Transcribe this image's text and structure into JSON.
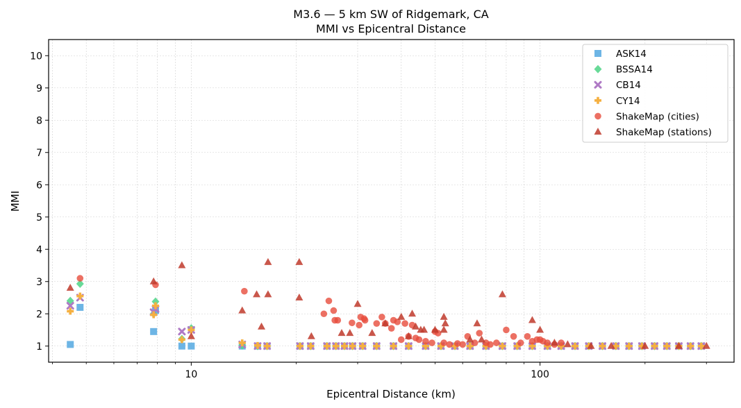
{
  "chart_data": {
    "type": "scatter",
    "title": "M3.6 — 5 km SW of Ridgemark, CA",
    "subtitle": "MMI vs Epicentral Distance",
    "xlabel": "Epicentral Distance (km)",
    "ylabel": "MMI",
    "xscale": "log",
    "xlim": [
      3.9,
      360
    ],
    "ylim": [
      0.5,
      10.5
    ],
    "xticks": [
      10,
      100
    ],
    "xtick_labels": [
      "10",
      "100"
    ],
    "yticks": [
      1,
      2,
      3,
      4,
      5,
      6,
      7,
      8,
      9,
      10
    ],
    "ytick_labels": [
      "1",
      "2",
      "3",
      "4",
      "5",
      "6",
      "7",
      "8",
      "9",
      "10"
    ],
    "grid": true,
    "legend_position": "top-right",
    "series": [
      {
        "name": "ASK14",
        "marker": "square",
        "color": "#5DADE2",
        "points": [
          [
            4.5,
            1.05
          ],
          [
            4.8,
            2.2
          ],
          [
            7.8,
            1.45
          ],
          [
            7.9,
            2.1
          ],
          [
            9.4,
            1.0
          ],
          [
            10.0,
            1.0
          ],
          [
            14.0,
            1.0
          ],
          [
            15.5,
            1.0
          ],
          [
            16.5,
            1.0
          ],
          [
            20.5,
            1.0
          ],
          [
            22.0,
            1.0
          ],
          [
            24.5,
            1.0
          ],
          [
            26.0,
            1.0
          ],
          [
            27.5,
            1.0
          ],
          [
            29.0,
            1.0
          ],
          [
            31.0,
            1.0
          ],
          [
            34.0,
            1.0
          ],
          [
            38.0,
            1.0
          ],
          [
            42.0,
            1.0
          ],
          [
            47.0,
            1.0
          ],
          [
            52.0,
            1.0
          ],
          [
            57.0,
            1.0
          ],
          [
            63.0,
            1.0
          ],
          [
            70.0,
            1.0
          ],
          [
            78.0,
            1.0
          ],
          [
            86.0,
            1.0
          ],
          [
            95.0,
            1.0
          ],
          [
            105.0,
            1.0
          ],
          [
            115.0,
            1.0
          ],
          [
            126.0,
            1.0
          ],
          [
            138.0,
            1.0
          ],
          [
            151.0,
            1.0
          ],
          [
            165.0,
            1.0
          ],
          [
            180.0,
            1.0
          ],
          [
            196.0,
            1.0
          ],
          [
            213.0,
            1.0
          ],
          [
            231.0,
            1.0
          ],
          [
            250.0,
            1.0
          ],
          [
            270.0,
            1.0
          ],
          [
            290.0,
            1.0
          ]
        ]
      },
      {
        "name": "BSSA14",
        "marker": "diamond",
        "color": "#58D68D",
        "points": [
          [
            4.5,
            2.4
          ],
          [
            4.8,
            2.93
          ],
          [
            7.8,
            2.0
          ],
          [
            7.9,
            2.38
          ],
          [
            9.4,
            1.22
          ],
          [
            10.0,
            1.55
          ],
          [
            14.0,
            1.02
          ],
          [
            15.5,
            1.0
          ],
          [
            16.5,
            1.0
          ],
          [
            20.5,
            1.0
          ],
          [
            22.0,
            1.0
          ],
          [
            24.5,
            1.0
          ],
          [
            26.0,
            1.0
          ],
          [
            27.5,
            1.0
          ],
          [
            29.0,
            1.0
          ],
          [
            31.0,
            1.0
          ],
          [
            34.0,
            1.0
          ],
          [
            38.0,
            1.0
          ],
          [
            42.0,
            1.0
          ],
          [
            47.0,
            1.0
          ],
          [
            52.0,
            1.0
          ],
          [
            57.0,
            1.0
          ],
          [
            63.0,
            1.0
          ],
          [
            70.0,
            1.0
          ],
          [
            78.0,
            1.0
          ],
          [
            86.0,
            1.0
          ],
          [
            95.0,
            1.0
          ],
          [
            105.0,
            1.0
          ],
          [
            115.0,
            1.0
          ],
          [
            126.0,
            1.0
          ],
          [
            138.0,
            1.0
          ],
          [
            151.0,
            1.0
          ],
          [
            165.0,
            1.0
          ],
          [
            180.0,
            1.0
          ],
          [
            196.0,
            1.0
          ],
          [
            213.0,
            1.0
          ],
          [
            231.0,
            1.0
          ],
          [
            250.0,
            1.0
          ],
          [
            270.0,
            1.0
          ],
          [
            290.0,
            1.0
          ]
        ]
      },
      {
        "name": "CB14",
        "marker": "x",
        "color": "#AF7AC5",
        "points": [
          [
            4.5,
            2.25
          ],
          [
            4.8,
            2.5
          ],
          [
            7.8,
            2.05
          ],
          [
            7.9,
            2.15
          ],
          [
            9.4,
            1.45
          ],
          [
            10.0,
            1.5
          ],
          [
            14.0,
            1.05
          ],
          [
            15.5,
            1.0
          ],
          [
            16.5,
            1.0
          ],
          [
            20.5,
            1.0
          ],
          [
            22.0,
            1.0
          ],
          [
            24.5,
            1.0
          ],
          [
            26.0,
            1.0
          ],
          [
            27.5,
            1.0
          ],
          [
            29.0,
            1.0
          ],
          [
            31.0,
            1.0
          ],
          [
            34.0,
            1.0
          ],
          [
            38.0,
            1.0
          ],
          [
            42.0,
            1.0
          ],
          [
            47.0,
            1.0
          ],
          [
            52.0,
            1.0
          ],
          [
            57.0,
            1.0
          ],
          [
            63.0,
            1.0
          ],
          [
            70.0,
            1.0
          ],
          [
            78.0,
            1.0
          ],
          [
            86.0,
            1.0
          ],
          [
            95.0,
            1.0
          ],
          [
            105.0,
            1.0
          ],
          [
            115.0,
            1.0
          ],
          [
            126.0,
            1.0
          ],
          [
            138.0,
            1.0
          ],
          [
            151.0,
            1.0
          ],
          [
            165.0,
            1.0
          ],
          [
            180.0,
            1.0
          ],
          [
            196.0,
            1.0
          ],
          [
            213.0,
            1.0
          ],
          [
            231.0,
            1.0
          ],
          [
            250.0,
            1.0
          ],
          [
            270.0,
            1.0
          ],
          [
            290.0,
            1.0
          ]
        ]
      },
      {
        "name": "CY14",
        "marker": "plus",
        "color": "#F5B041",
        "points": [
          [
            4.5,
            2.08
          ],
          [
            4.8,
            2.55
          ],
          [
            7.8,
            1.97
          ],
          [
            7.9,
            2.25
          ],
          [
            9.4,
            1.2
          ],
          [
            10.0,
            1.5
          ],
          [
            14.0,
            1.1
          ],
          [
            15.5,
            1.02
          ],
          [
            16.5,
            1.0
          ],
          [
            20.5,
            1.0
          ],
          [
            22.0,
            1.0
          ],
          [
            24.5,
            1.0
          ],
          [
            26.0,
            1.0
          ],
          [
            27.5,
            1.0
          ],
          [
            29.0,
            1.0
          ],
          [
            31.0,
            1.0
          ],
          [
            34.0,
            1.0
          ],
          [
            38.0,
            1.0
          ],
          [
            42.0,
            1.0
          ],
          [
            47.0,
            1.0
          ],
          [
            52.0,
            1.0
          ],
          [
            57.0,
            1.0
          ],
          [
            63.0,
            1.0
          ],
          [
            70.0,
            1.0
          ],
          [
            78.0,
            1.0
          ],
          [
            86.0,
            1.0
          ],
          [
            95.0,
            1.0
          ],
          [
            105.0,
            1.0
          ],
          [
            115.0,
            1.0
          ],
          [
            126.0,
            1.0
          ],
          [
            138.0,
            1.0
          ],
          [
            151.0,
            1.0
          ],
          [
            165.0,
            1.0
          ],
          [
            180.0,
            1.0
          ],
          [
            196.0,
            1.0
          ],
          [
            213.0,
            1.0
          ],
          [
            231.0,
            1.0
          ],
          [
            250.0,
            1.0
          ],
          [
            270.0,
            1.0
          ],
          [
            290.0,
            1.0
          ]
        ]
      },
      {
        "name": "ShakeMap (cities)",
        "marker": "circle",
        "color": "#E74C3C",
        "points": [
          [
            4.8,
            3.1
          ],
          [
            7.9,
            2.9
          ],
          [
            14.2,
            2.7
          ],
          [
            24.0,
            2.0
          ],
          [
            24.8,
            2.4
          ],
          [
            25.6,
            2.1
          ],
          [
            25.8,
            1.8
          ],
          [
            26.3,
            1.8
          ],
          [
            28.9,
            1.72
          ],
          [
            30.3,
            1.65
          ],
          [
            30.6,
            1.9
          ],
          [
            31.3,
            1.85
          ],
          [
            31.5,
            1.8
          ],
          [
            34.0,
            1.7
          ],
          [
            35.2,
            1.9
          ],
          [
            36.0,
            1.7
          ],
          [
            37.5,
            1.55
          ],
          [
            38.0,
            1.8
          ],
          [
            39.0,
            1.75
          ],
          [
            41.0,
            1.7
          ],
          [
            42.0,
            1.3
          ],
          [
            43.0,
            1.65
          ],
          [
            44.0,
            1.25
          ],
          [
            45.0,
            1.2
          ],
          [
            47.0,
            1.15
          ],
          [
            49.0,
            1.1
          ],
          [
            50.0,
            1.45
          ],
          [
            51.0,
            1.4
          ],
          [
            53.0,
            1.1
          ],
          [
            55.0,
            1.05
          ],
          [
            58.0,
            1.08
          ],
          [
            60.0,
            1.05
          ],
          [
            62.0,
            1.3
          ],
          [
            65.0,
            1.1
          ],
          [
            67.0,
            1.4
          ],
          [
            70.0,
            1.1
          ],
          [
            72.0,
            1.05
          ],
          [
            75.0,
            1.1
          ],
          [
            80.0,
            1.5
          ],
          [
            84.0,
            1.3
          ],
          [
            88.0,
            1.1
          ],
          [
            92.0,
            1.3
          ],
          [
            95.0,
            1.15
          ],
          [
            98.0,
            1.2
          ],
          [
            100.0,
            1.2
          ],
          [
            102.0,
            1.15
          ],
          [
            105.0,
            1.1
          ],
          [
            110.0,
            1.05
          ],
          [
            115.0,
            1.1
          ],
          [
            40.0,
            1.2
          ]
        ]
      },
      {
        "name": "ShakeMap (stations)",
        "marker": "triangle",
        "color": "#C0392B",
        "points": [
          [
            4.5,
            2.8
          ],
          [
            7.8,
            3.0
          ],
          [
            9.4,
            3.5
          ],
          [
            10.0,
            1.3
          ],
          [
            14.0,
            2.1
          ],
          [
            15.4,
            2.6
          ],
          [
            15.9,
            1.6
          ],
          [
            16.6,
            3.6
          ],
          [
            16.6,
            2.6
          ],
          [
            20.4,
            3.6
          ],
          [
            20.4,
            2.5
          ],
          [
            22.1,
            1.3
          ],
          [
            27.0,
            1.4
          ],
          [
            28.5,
            1.4
          ],
          [
            30.0,
            2.3
          ],
          [
            33.0,
            1.4
          ],
          [
            36.0,
            1.7
          ],
          [
            40.0,
            1.9
          ],
          [
            42.0,
            1.3
          ],
          [
            43.0,
            2.0
          ],
          [
            44.0,
            1.6
          ],
          [
            45.5,
            1.5
          ],
          [
            46.5,
            1.5
          ],
          [
            50.0,
            1.5
          ],
          [
            53.0,
            1.9
          ],
          [
            53.0,
            1.5
          ],
          [
            53.5,
            1.7
          ],
          [
            63.0,
            1.2
          ],
          [
            66.0,
            1.7
          ],
          [
            68.0,
            1.2
          ],
          [
            78.0,
            2.6
          ],
          [
            95.0,
            1.8
          ],
          [
            100.0,
            1.5
          ],
          [
            110.0,
            1.1
          ],
          [
            120.0,
            1.05
          ],
          [
            140.0,
            1.0
          ],
          [
            160.0,
            1.0
          ],
          [
            200.0,
            1.0
          ],
          [
            250.0,
            1.0
          ],
          [
            300.0,
            1.0
          ]
        ]
      }
    ]
  }
}
